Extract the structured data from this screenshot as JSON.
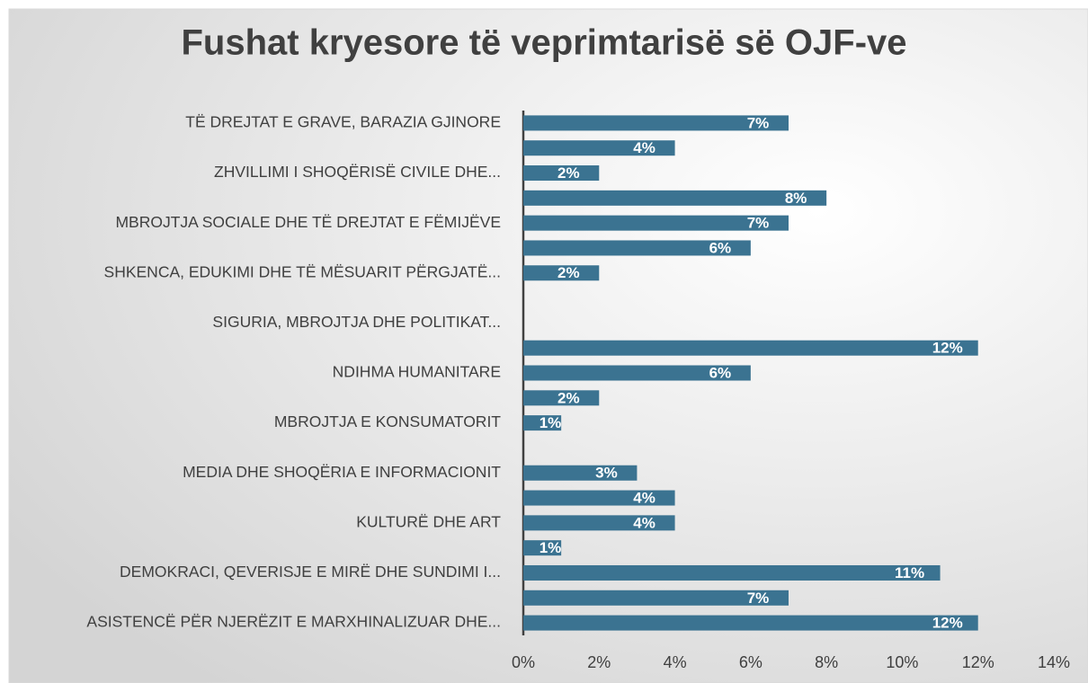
{
  "chart_data": {
    "type": "bar",
    "orientation": "horizontal",
    "title": "Fushat kryesore të veprimtarisë së OJF-ve",
    "categories": [
      "TË DREJTAT E GRAVE, BARAZIA GJINORE",
      null,
      "ZHVILLIMI I SHOQËRISË CIVILE DHE...",
      null,
      "MBROJTJA SOCIALE DHE TË DREJTAT E FËMIJËVE",
      null,
      "SHKENCA, EDUKIMI DHE TË MËSUARIT PËRGJATË...",
      null,
      "SIGURIA, MBROJTJA DHE POLITIKAT...",
      null,
      "NDIHMA HUMANITARE",
      null,
      "MBROJTJA E KONSUMATORIT",
      null,
      "MEDIA DHE SHOQËRIA E INFORMACIONIT",
      null,
      "KULTURË DHE ART",
      null,
      "DEMOKRACI, QEVERISJE E MIRË DHE SUNDIMI I...",
      null,
      "ASISTENCË PËR NJERËZIT E MARXHINALIZUAR DHE..."
    ],
    "values": [
      7,
      4,
      2,
      8,
      7,
      6,
      2,
      null,
      null,
      12,
      6,
      2,
      1,
      null,
      3,
      4,
      4,
      1,
      11,
      7,
      12
    ],
    "value_labels": [
      "7%",
      "4%",
      "2%",
      "8%",
      "7%",
      "6%",
      "2%",
      null,
      null,
      "12%",
      "6%",
      "2%",
      "1%",
      null,
      "3%",
      "4%",
      "4%",
      "1%",
      "11%",
      "7%",
      "12%"
    ],
    "color": "#3b7391",
    "xlim": [
      0,
      14
    ],
    "xticks": [
      {
        "value": 0,
        "label": "0%"
      },
      {
        "value": 2,
        "label": "2%"
      },
      {
        "value": 4,
        "label": "4%"
      },
      {
        "value": 6,
        "label": "6%"
      },
      {
        "value": 8,
        "label": "8%"
      },
      {
        "value": 10,
        "label": "10%"
      },
      {
        "value": 12,
        "label": "12%"
      },
      {
        "value": 14,
        "label": "14%"
      }
    ],
    "grid": false
  }
}
